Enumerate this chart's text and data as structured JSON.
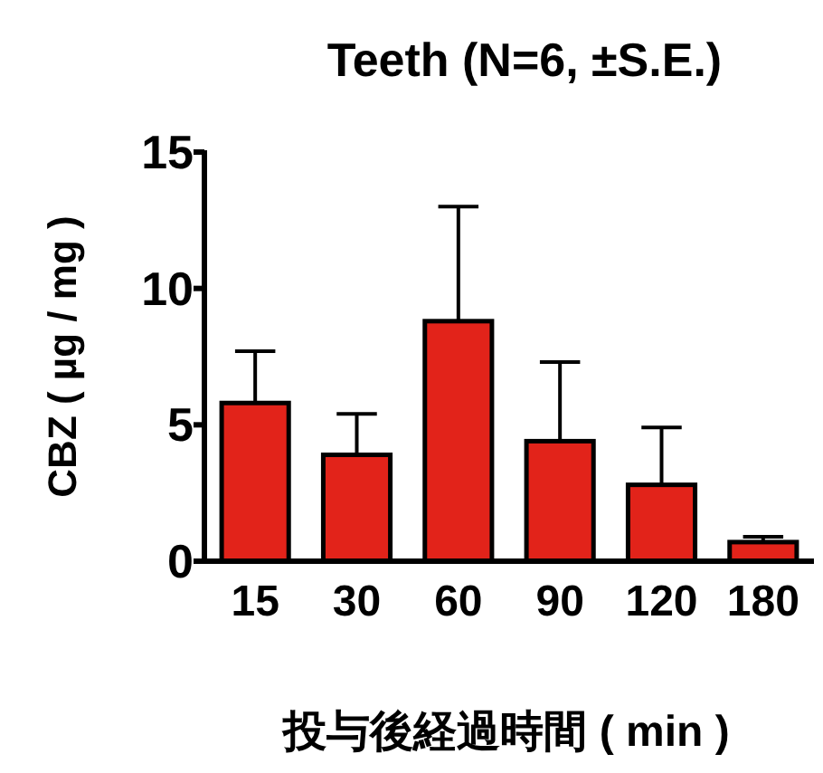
{
  "chart_data": {
    "type": "bar",
    "title": "Teeth (N=6, ±S.E.)",
    "ylabel": "CBZ ( µg / mg )",
    "xlabel": "投与後経過時間 ( min )",
    "categories": [
      "15",
      "30",
      "60",
      "90",
      "120",
      "180"
    ],
    "values": [
      5.8,
      3.9,
      8.8,
      4.4,
      2.8,
      0.7
    ],
    "errors": [
      [
        5.8,
        7.7
      ],
      [
        3.9,
        5.4
      ],
      [
        8.8,
        13.0
      ],
      [
        4.4,
        7.3
      ],
      [
        2.8,
        4.9
      ],
      [
        0.7,
        0.9
      ]
    ],
    "color": "#e2231a",
    "ylim": [
      0,
      15
    ],
    "yticks": [
      0,
      5,
      10,
      15
    ]
  }
}
